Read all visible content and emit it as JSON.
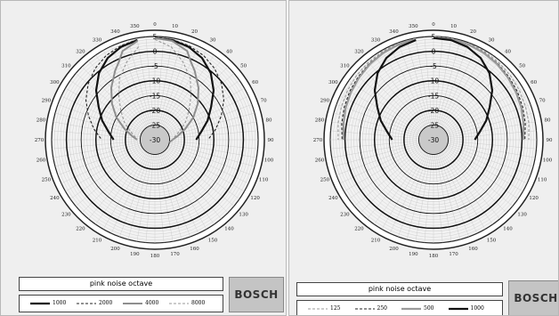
{
  "chart_data": [
    {
      "type": "polar",
      "title": "",
      "angle_unit": "degrees",
      "angle_ticks": [
        0,
        10,
        20,
        30,
        40,
        50,
        60,
        70,
        80,
        90,
        100,
        110,
        120,
        130,
        140,
        150,
        160,
        170,
        180,
        190,
        200,
        210,
        220,
        230,
        240,
        250,
        260,
        270,
        280,
        290,
        300,
        310,
        320,
        330,
        340,
        350
      ],
      "radial_ticks": [
        "5",
        "0",
        "-5",
        "-10",
        "-15",
        "-20",
        "-25",
        "-30"
      ],
      "rlim": [
        -30,
        5
      ],
      "grid": true,
      "caption": "pink noise octave",
      "series": [
        {
          "name": "1000",
          "style": "solid",
          "color": "#111111",
          "width": 2.2,
          "angles": [
            0,
            10,
            20,
            30,
            40,
            50,
            60,
            70,
            80,
            90,
            270,
            280,
            290,
            300,
            310,
            320,
            330,
            340,
            350
          ],
          "values": [
            4.5,
            4.3,
            3.5,
            2,
            -0.5,
            -4,
            -8,
            -11,
            -14,
            -16,
            -16,
            -14,
            -11,
            -8,
            -4,
            -0.5,
            2,
            3.5,
            4.3
          ]
        },
        {
          "name": "2000",
          "style": "dashed",
          "color": "#222222",
          "width": 1.1,
          "angles": [
            0,
            10,
            20,
            30,
            40,
            50,
            60,
            70,
            80,
            90,
            270,
            280,
            290,
            300,
            310,
            320,
            330,
            340,
            350
          ],
          "values": [
            4.8,
            4.5,
            3.9,
            3,
            1.5,
            -0.5,
            -3,
            -6,
            -9,
            -12,
            -12,
            -9,
            -6,
            -3,
            -0.5,
            1.5,
            3,
            3.9,
            4.5
          ]
        },
        {
          "name": "4000",
          "style": "solid",
          "color": "#8e8e8e",
          "width": 2,
          "angles": [
            0,
            10,
            20,
            25,
            30,
            40,
            50,
            60,
            70,
            80,
            90,
            100,
            270,
            280,
            290,
            300,
            310,
            320,
            330,
            335,
            340,
            350
          ],
          "values": [
            4.5,
            4,
            2,
            -1,
            -3,
            -7,
            -11,
            -15,
            -19,
            -22,
            -24,
            -25,
            -24,
            -22,
            -19,
            -15,
            -11,
            -7,
            -3,
            -1,
            2,
            4
          ]
        },
        {
          "name": "8000",
          "style": "dashed",
          "color": "#9a9a9a",
          "width": 1.1,
          "angles": [
            0,
            10,
            20,
            30,
            40,
            50,
            60,
            70,
            80,
            90,
            270,
            280,
            290,
            300,
            310,
            320,
            330,
            340,
            350
          ],
          "values": [
            4,
            2,
            -2,
            -6,
            -11,
            -15,
            -18,
            -21,
            -23,
            -24,
            -24,
            -23,
            -21,
            -18,
            -15,
            -11,
            -6,
            -2,
            2
          ]
        }
      ]
    },
    {
      "type": "polar",
      "title": "",
      "angle_unit": "degrees",
      "angle_ticks": [
        0,
        10,
        20,
        30,
        40,
        50,
        60,
        70,
        80,
        90,
        100,
        110,
        120,
        130,
        140,
        150,
        160,
        170,
        180,
        190,
        200,
        210,
        220,
        230,
        240,
        250,
        260,
        270,
        280,
        290,
        300,
        310,
        320,
        330,
        340,
        350
      ],
      "radial_ticks": [
        "5",
        "0",
        "-5",
        "-10",
        "-15",
        "-20",
        "-25",
        "-30"
      ],
      "rlim": [
        -30,
        5
      ],
      "grid": true,
      "caption": "pink noise octave",
      "series": [
        {
          "name": "125",
          "style": "dashed",
          "color": "#9a9a9a",
          "width": 1.1,
          "angles": [
            0,
            10,
            20,
            30,
            40,
            50,
            60,
            70,
            80,
            90,
            270,
            280,
            290,
            300,
            310,
            320,
            330,
            340,
            350
          ],
          "values": [
            5,
            4.9,
            4.8,
            4.6,
            4.3,
            4,
            3.6,
            3.2,
            2.8,
            2.3,
            2.3,
            2.8,
            3.2,
            3.6,
            4,
            4.3,
            4.6,
            4.8,
            4.9
          ]
        },
        {
          "name": "250",
          "style": "dashed",
          "color": "#222222",
          "width": 1.1,
          "angles": [
            0,
            10,
            20,
            30,
            40,
            50,
            60,
            70,
            80,
            90,
            270,
            280,
            290,
            300,
            310,
            320,
            330,
            340,
            350
          ],
          "values": [
            4.8,
            4.7,
            4.5,
            4.2,
            3.8,
            3.3,
            2.8,
            2.2,
            1.6,
            1,
            1,
            1.6,
            2.2,
            2.8,
            3.3,
            3.8,
            4.2,
            4.5,
            4.7
          ]
        },
        {
          "name": "500",
          "style": "solid",
          "color": "#9a9a9a",
          "width": 2.2,
          "angles": [
            0,
            10,
            20,
            30,
            40,
            50,
            60,
            70,
            80,
            90,
            270,
            280,
            290,
            300,
            310,
            320,
            330,
            340,
            350
          ],
          "values": [
            4.7,
            4.6,
            4.4,
            4,
            3.5,
            2.9,
            2.3,
            1.7,
            1,
            0.4,
            0.4,
            1,
            1.7,
            2.3,
            2.9,
            3.5,
            4,
            4.4,
            4.6
          ]
        },
        {
          "name": "1000",
          "style": "solid",
          "color": "#111111",
          "width": 2.2,
          "angles": [
            0,
            10,
            20,
            30,
            40,
            50,
            60,
            70,
            80,
            90,
            270,
            280,
            290,
            300,
            310,
            320,
            330,
            340,
            350
          ],
          "values": [
            4.5,
            4.3,
            3.5,
            2,
            -0.5,
            -4,
            -8,
            -11,
            -14,
            -16,
            -16,
            -14,
            -11,
            -8,
            -4,
            -0.5,
            2,
            3.5,
            4.3
          ]
        }
      ]
    }
  ],
  "brand": "BOSCH"
}
